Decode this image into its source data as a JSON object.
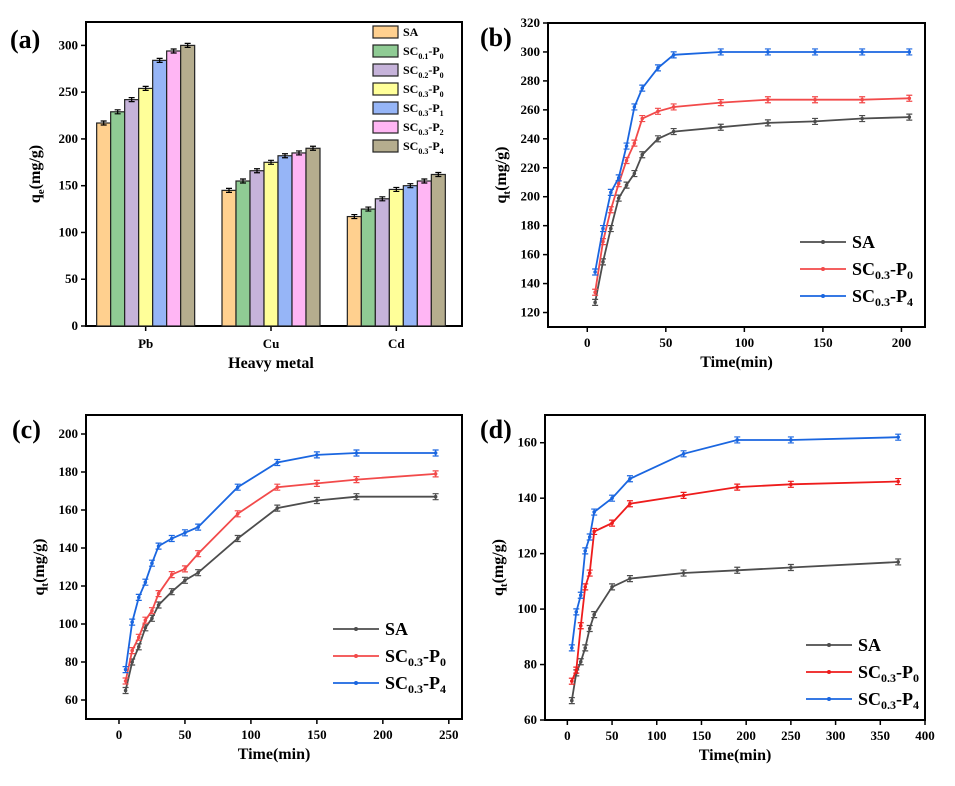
{
  "chart_data": [
    {
      "panel": "(a)",
      "type": "bar",
      "title": "",
      "xlabel": "Heavy metal",
      "ylabel": "qe(mg/g)",
      "ylim": [
        0,
        325
      ],
      "yticks": [
        0,
        50,
        100,
        150,
        200,
        250,
        300
      ],
      "categories": [
        "Pb",
        "Cu",
        "Cd"
      ],
      "legend_position": "top-right",
      "series": [
        {
          "name": "SA",
          "color": "#FFD08F",
          "values": [
            217,
            145,
            117
          ]
        },
        {
          "name": "SC0.1-P0",
          "color": "#8FCB94",
          "values": [
            229,
            155,
            125
          ]
        },
        {
          "name": "SC0.2-P0",
          "color": "#C6B3DA",
          "values": [
            242,
            166,
            136
          ]
        },
        {
          "name": "SC0.3-P0",
          "color": "#FFFF99",
          "values": [
            254,
            175,
            146
          ]
        },
        {
          "name": "SC0.3-P1",
          "color": "#96B5F7",
          "values": [
            284,
            182,
            150
          ]
        },
        {
          "name": "SC0.3-P2",
          "color": "#FFB6F4",
          "values": [
            294,
            185,
            155
          ]
        },
        {
          "name": "SC0.3-P4",
          "color": "#B5AD8E",
          "values": [
            300,
            190,
            162
          ]
        }
      ],
      "legend_labels": [
        {
          "base": "SA",
          "sub1": "",
          "mid": "",
          "sub2": ""
        },
        {
          "base": "SC",
          "sub1": "0.1",
          "mid": "-P",
          "sub2": "0"
        },
        {
          "base": "SC",
          "sub1": "0.2",
          "mid": "-P",
          "sub2": "0"
        },
        {
          "base": "SC",
          "sub1": "0.3",
          "mid": "-P",
          "sub2": "0"
        },
        {
          "base": "SC",
          "sub1": "0.3",
          "mid": "-P",
          "sub2": "1"
        },
        {
          "base": "SC",
          "sub1": "0.3",
          "mid": "-P",
          "sub2": "2"
        },
        {
          "base": "SC",
          "sub1": "0.3",
          "mid": "-P",
          "sub2": "4"
        }
      ]
    },
    {
      "panel": "(b)",
      "type": "line",
      "xlabel": "Time(min)",
      "ylabel": "qt(mg/g)",
      "xlim": [
        -25,
        215
      ],
      "ylim": [
        110,
        320
      ],
      "xticks": [
        0,
        50,
        100,
        150,
        200
      ],
      "yticks": [
        120,
        140,
        160,
        180,
        200,
        220,
        240,
        260,
        280,
        300,
        320
      ],
      "legend_position": "bottom-right",
      "x": [
        5,
        10,
        15,
        20,
        25,
        30,
        35,
        45,
        55,
        85,
        115,
        145,
        175,
        205
      ],
      "series": [
        {
          "name": "SA",
          "color": "#4D4D4D",
          "values": [
            127,
            155,
            178,
            199,
            208,
            216,
            229,
            240,
            245,
            248,
            251,
            252,
            254,
            255
          ]
        },
        {
          "name": "SC0.3-P0",
          "color": "#F24A4A",
          "values": [
            134,
            169,
            191,
            209,
            225,
            237,
            254,
            259,
            262,
            265,
            267,
            267,
            267,
            268
          ]
        },
        {
          "name": "SC0.3-P4",
          "color": "#1A66E0",
          "values": [
            148,
            178,
            203,
            213,
            235,
            262,
            275,
            289,
            298,
            300,
            300,
            300,
            300,
            300
          ]
        }
      ]
    },
    {
      "panel": "(c)",
      "type": "line",
      "xlabel": "Time(min)",
      "ylabel": "qt(mg/g)",
      "xlim": [
        -25,
        260
      ],
      "ylim": [
        50,
        210
      ],
      "xticks": [
        0,
        50,
        100,
        150,
        200,
        250
      ],
      "yticks": [
        60,
        80,
        100,
        120,
        140,
        160,
        180,
        200
      ],
      "legend_position": "bottom-right",
      "x": [
        5,
        10,
        15,
        20,
        25,
        30,
        40,
        50,
        60,
        90,
        120,
        150,
        180,
        240
      ],
      "series": [
        {
          "name": "SA",
          "color": "#4D4D4D",
          "values": [
            65,
            80,
            88,
            98,
            103,
            110,
            117,
            123,
            127,
            145,
            161,
            165,
            167,
            167
          ]
        },
        {
          "name": "SC0.3-P0",
          "color": "#F24A4A",
          "values": [
            70,
            86,
            93,
            102,
            107,
            116,
            126,
            129,
            137,
            158,
            172,
            174,
            176,
            179
          ]
        },
        {
          "name": "SC0.3-P4",
          "color": "#1A66E0",
          "values": [
            76,
            101,
            114,
            122,
            132,
            141,
            145,
            148,
            151,
            172,
            185,
            189,
            190,
            190
          ]
        }
      ]
    },
    {
      "panel": "(d)",
      "type": "line",
      "xlabel": "Time(min)",
      "ylabel": "qt(mg/g)",
      "xlim": [
        -25,
        400
      ],
      "ylim": [
        60,
        170
      ],
      "xticks": [
        0,
        50,
        100,
        150,
        200,
        250,
        300,
        350,
        400
      ],
      "yticks": [
        60,
        80,
        100,
        120,
        140,
        160
      ],
      "legend_position": "bottom-right",
      "x": [
        5,
        10,
        15,
        20,
        25,
        30,
        50,
        70,
        130,
        190,
        250,
        370
      ],
      "series": [
        {
          "name": "SA",
          "color": "#4D4D4D",
          "values": [
            67,
            77,
            81,
            86,
            93,
            98,
            108,
            111,
            113,
            114,
            115,
            117
          ]
        },
        {
          "name": "SC0.3-P0",
          "color": "#EE1C1C",
          "values": [
            74,
            78,
            94,
            108,
            113,
            128,
            131,
            138,
            141,
            144,
            145,
            146
          ]
        },
        {
          "name": "SC0.3-P4",
          "color": "#1A66E0",
          "values": [
            86,
            99,
            105,
            121,
            126,
            135,
            140,
            147,
            156,
            161,
            161,
            162
          ]
        }
      ]
    }
  ],
  "line_legend_labels": [
    {
      "base": "SA",
      "sub1": "",
      "mid": "",
      "sub2": ""
    },
    {
      "base": "SC",
      "sub1": "0.3",
      "mid": "-P",
      "sub2": "0"
    },
    {
      "base": "SC",
      "sub1": "0.3",
      "mid": "-P",
      "sub2": "4"
    }
  ]
}
